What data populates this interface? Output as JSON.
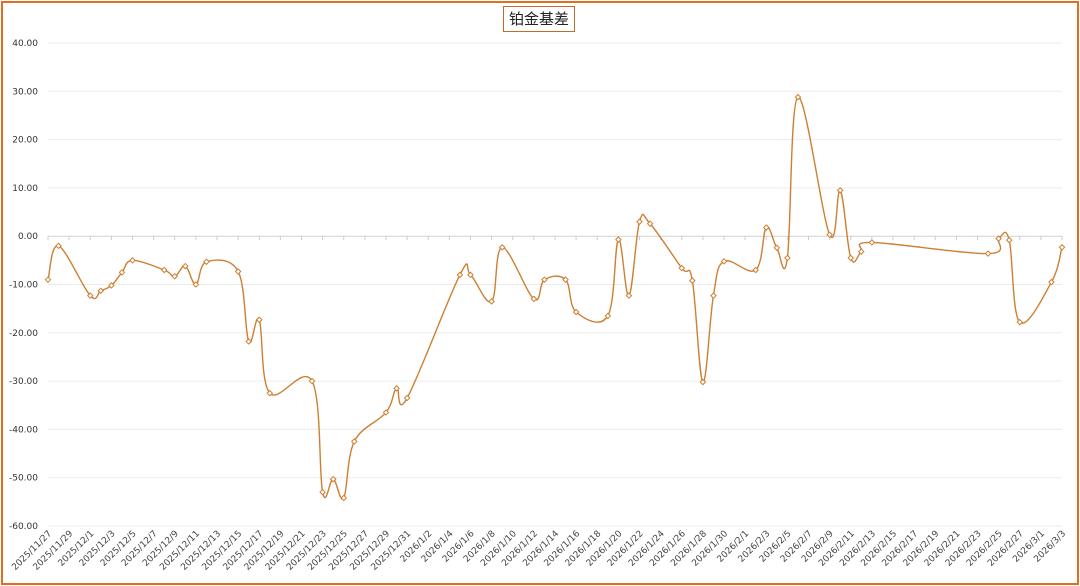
{
  "chart_data": {
    "type": "line",
    "title": "铂金基差",
    "xlabel": "",
    "ylabel": "",
    "ylim": [
      -60,
      40
    ],
    "y_ticks": [
      "40.00",
      "30.00",
      "20.00",
      "10.00",
      "0.00",
      "-10.00",
      "-20.00",
      "-30.00",
      "-40.00",
      "-50.00",
      "-60.00"
    ],
    "x_tick_labels": [
      "2025/11/27",
      "2025/11/29",
      "2025/12/1",
      "2025/12/3",
      "2025/12/5",
      "2025/12/7",
      "2025/12/9",
      "2025/12/11",
      "2025/12/13",
      "2025/12/15",
      "2025/12/17",
      "2025/12/19",
      "2025/12/21",
      "2025/12/23",
      "2025/12/25",
      "2025/12/27",
      "2025/12/29",
      "2025/12/31",
      "2026/1/2",
      "2026/1/4",
      "2026/1/6",
      "2026/1/8",
      "2026/1/10",
      "2026/1/12",
      "2026/1/14",
      "2026/1/16",
      "2026/1/18",
      "2026/1/20",
      "2026/1/22",
      "2026/1/24",
      "2026/1/26",
      "2026/1/28",
      "2026/1/30",
      "2026/2/1",
      "2026/2/3",
      "2026/2/5",
      "2026/2/7",
      "2026/2/9",
      "2026/2/11",
      "2026/2/13",
      "2026/2/15",
      "2026/2/17",
      "2026/2/19",
      "2026/2/21",
      "2026/2/23",
      "2026/2/25",
      "2026/2/27",
      "2026/3/1",
      "2026/3/3"
    ],
    "grid": true,
    "legend": "none",
    "line_color": "#cd7f32",
    "series": [
      {
        "points": [
          {
            "x": "2025/11/27",
            "y": -9
          },
          {
            "x": "2025/11/28",
            "y": -2
          },
          {
            "x": "2025/12/1",
            "y": -12.3
          },
          {
            "x": "2025/12/2",
            "y": -11.3
          },
          {
            "x": "2025/12/3",
            "y": -10.2
          },
          {
            "x": "2025/12/4",
            "y": -7.5
          },
          {
            "x": "2025/12/5",
            "y": -5
          },
          {
            "x": "2025/12/8",
            "y": -7
          },
          {
            "x": "2025/12/9",
            "y": -8.3
          },
          {
            "x": "2025/12/10",
            "y": -6.2
          },
          {
            "x": "2025/12/11",
            "y": -10
          },
          {
            "x": "2025/12/12",
            "y": -5.3
          },
          {
            "x": "2025/12/15",
            "y": -7.3
          },
          {
            "x": "2025/12/16",
            "y": -21.8
          },
          {
            "x": "2025/12/17",
            "y": -17.3
          },
          {
            "x": "2025/12/18",
            "y": -32.5
          },
          {
            "x": "2025/12/22",
            "y": -30
          },
          {
            "x": "2025/12/23",
            "y": -53
          },
          {
            "x": "2025/12/24",
            "y": -50.3
          },
          {
            "x": "2025/12/25",
            "y": -54.2
          },
          {
            "x": "2025/12/26",
            "y": -42.5
          },
          {
            "x": "2025/12/29",
            "y": -36.5
          },
          {
            "x": "2025/12/30",
            "y": -31.5
          },
          {
            "x": "2025/12/31",
            "y": -33.5
          },
          {
            "x": "2026/1/5",
            "y": -8
          },
          {
            "x": "2026/1/6",
            "y": -8
          },
          {
            "x": "2026/1/8",
            "y": -13.5
          },
          {
            "x": "2026/1/9",
            "y": -2.3
          },
          {
            "x": "2026/1/12",
            "y": -13
          },
          {
            "x": "2026/1/13",
            "y": -9
          },
          {
            "x": "2026/1/15",
            "y": -9
          },
          {
            "x": "2026/1/16",
            "y": -15.7
          },
          {
            "x": "2026/1/19",
            "y": -16.5
          },
          {
            "x": "2026/1/20",
            "y": -0.7
          },
          {
            "x": "2026/1/21",
            "y": -12.3
          },
          {
            "x": "2026/1/22",
            "y": 3
          },
          {
            "x": "2026/1/23",
            "y": 2.6
          },
          {
            "x": "2026/1/26",
            "y": -6.6
          },
          {
            "x": "2026/1/27",
            "y": -9.2
          },
          {
            "x": "2026/1/28",
            "y": -30.2
          },
          {
            "x": "2026/1/29",
            "y": -12.3
          },
          {
            "x": "2026/1/30",
            "y": -5.2
          },
          {
            "x": "2026/2/2",
            "y": -7
          },
          {
            "x": "2026/2/3",
            "y": 1.8
          },
          {
            "x": "2026/2/4",
            "y": -2.4
          },
          {
            "x": "2026/2/5",
            "y": -4.5
          },
          {
            "x": "2026/2/6",
            "y": 28.8
          },
          {
            "x": "2026/2/9",
            "y": 0.3
          },
          {
            "x": "2026/2/10",
            "y": 9.5
          },
          {
            "x": "2026/2/11",
            "y": -4.5
          },
          {
            "x": "2026/2/12",
            "y": -3.2
          },
          {
            "x": "2026/2/13",
            "y": -1.3
          },
          {
            "x": "2026/2/24",
            "y": -3.6
          },
          {
            "x": "2026/2/25",
            "y": -0.5
          },
          {
            "x": "2026/2/26",
            "y": -0.8
          },
          {
            "x": "2026/2/27",
            "y": -17.8
          },
          {
            "x": "2026/3/2",
            "y": -9.5
          },
          {
            "x": "2026/3/3",
            "y": -2.3
          }
        ]
      }
    ]
  }
}
